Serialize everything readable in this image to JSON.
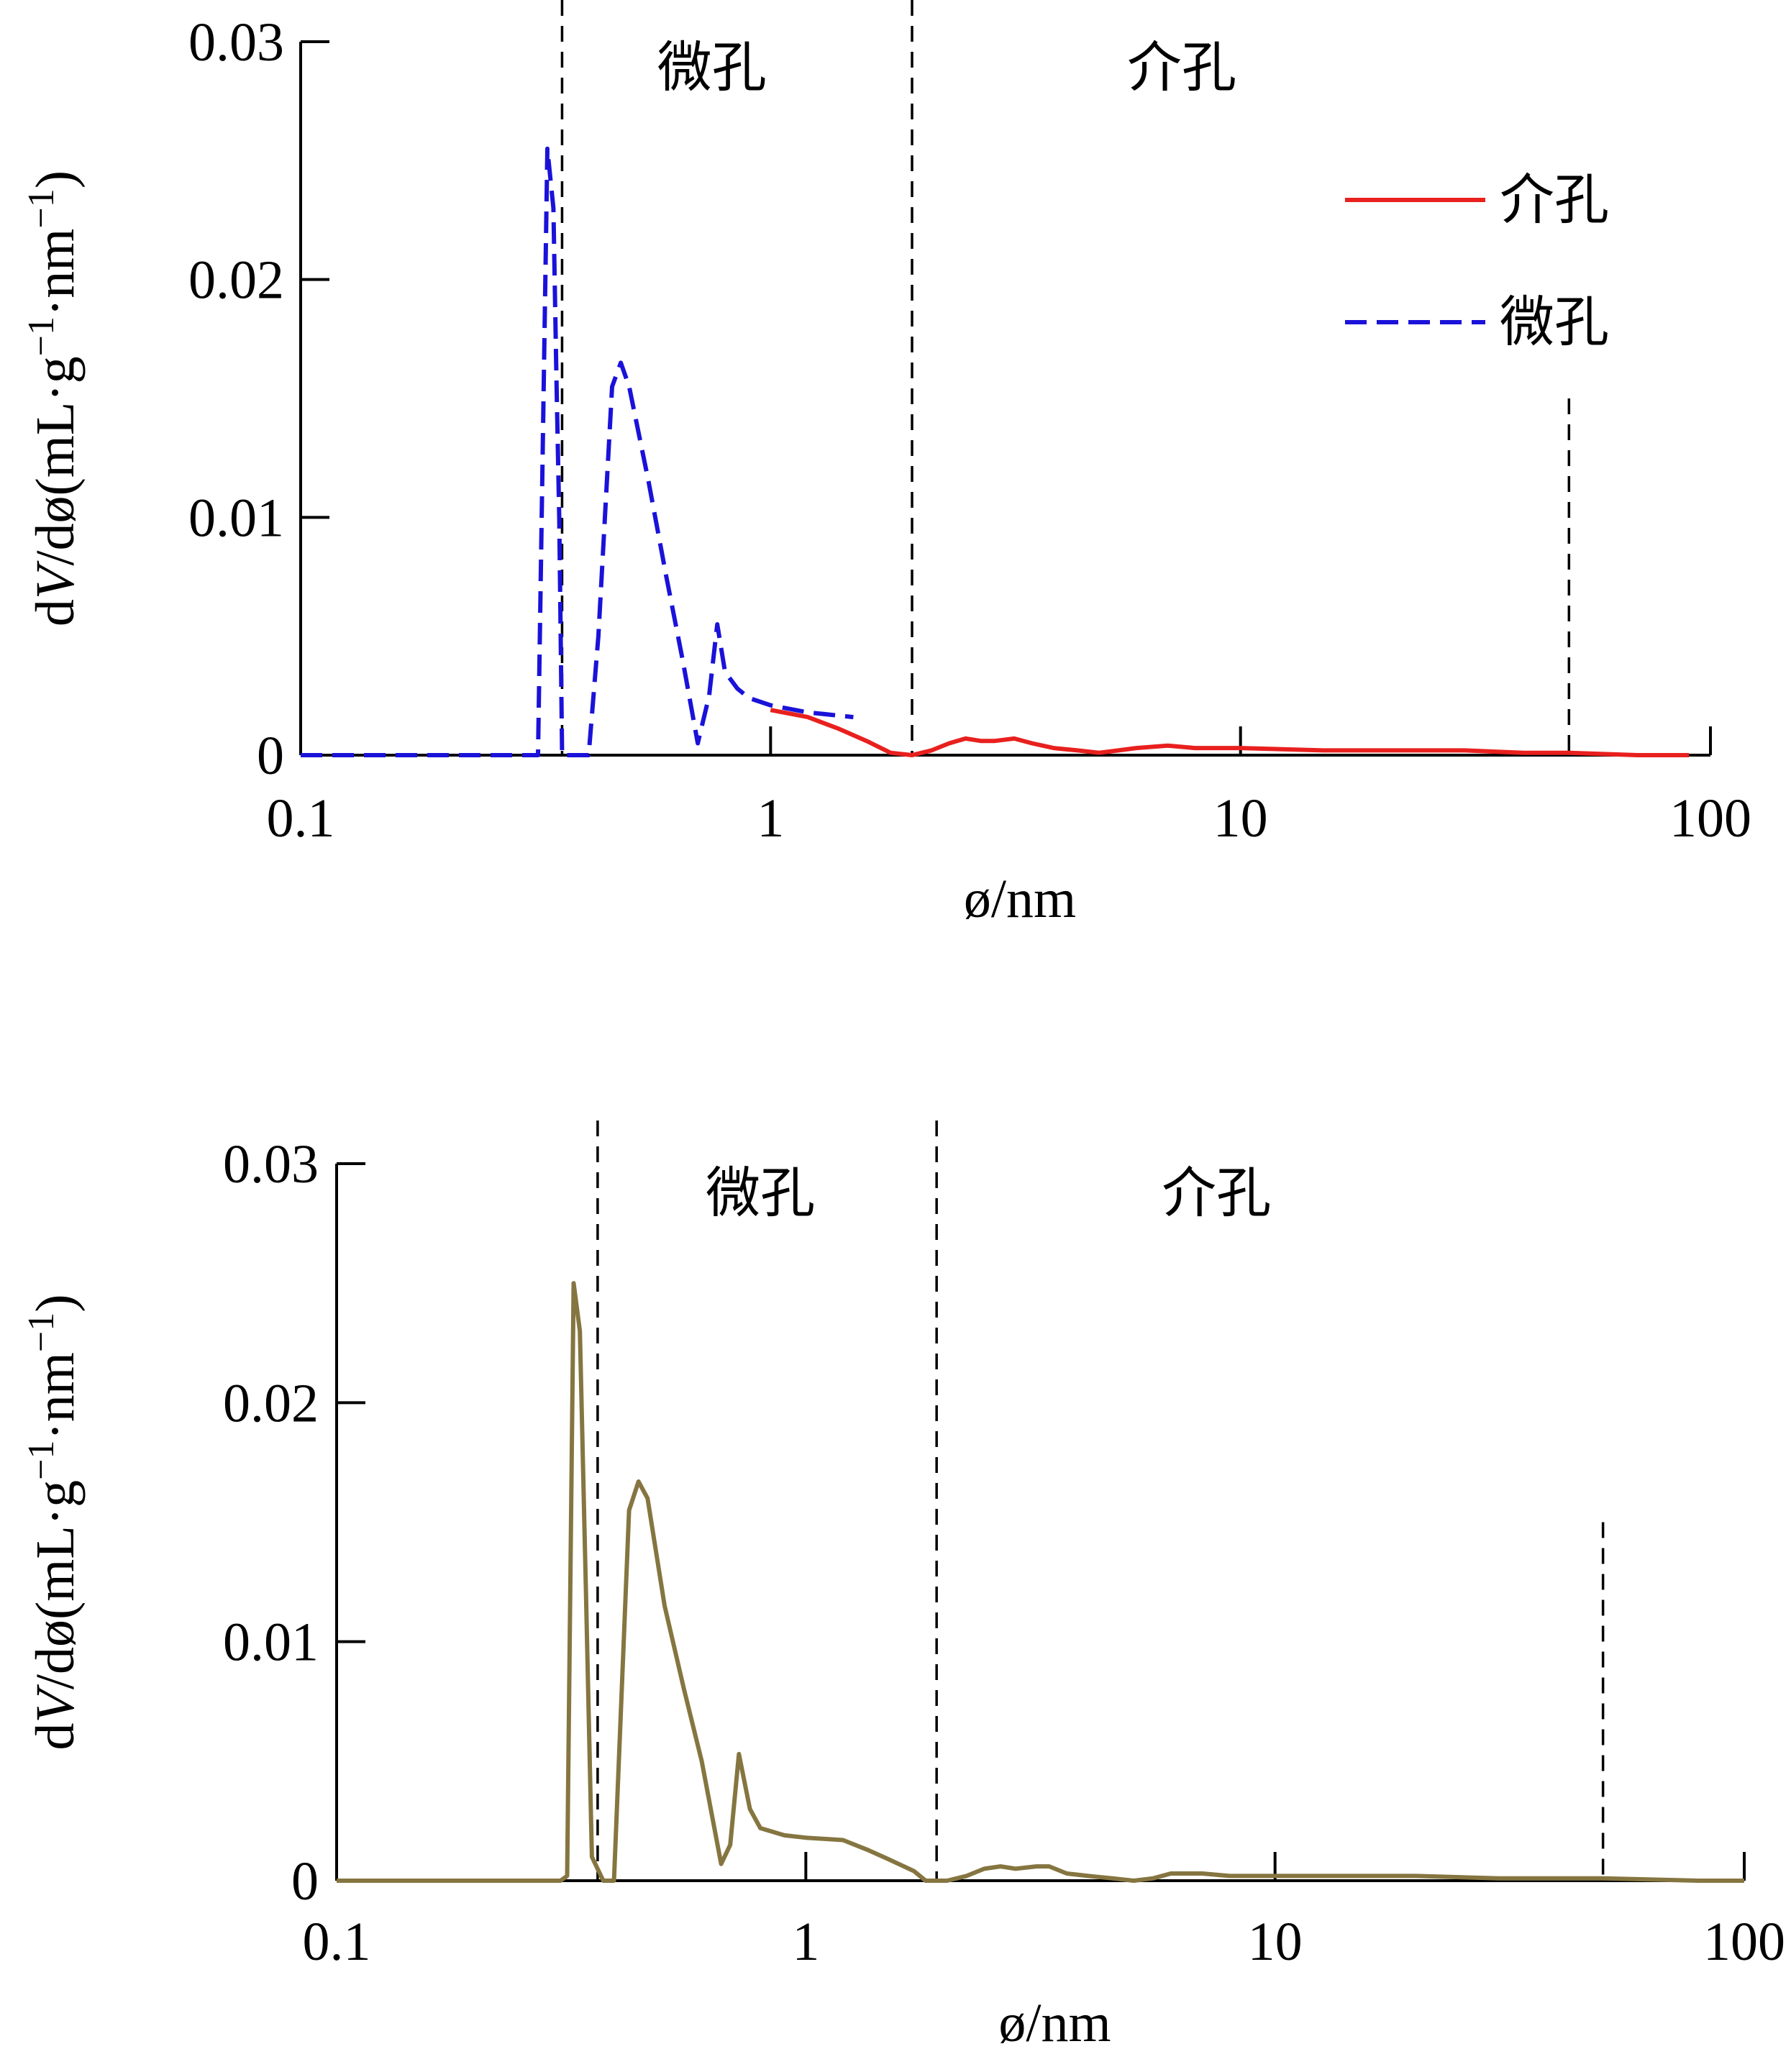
{
  "chart_data": [
    {
      "type": "line",
      "x_scale": "log",
      "xlim": [
        0.1,
        100
      ],
      "ylim": [
        0,
        0.03
      ],
      "x_ticks": [
        0.1,
        1,
        10,
        100
      ],
      "x_tick_labels": [
        "0.1",
        "1",
        "10",
        "100"
      ],
      "y_ticks": [
        0,
        0.01,
        0.02,
        0.03
      ],
      "y_tick_labels": [
        "0",
        "0.01",
        "0.02",
        "0.03"
      ],
      "xlabel": "ø/nm",
      "ylabel": "dV/dø(mL·g⁻¹·nm⁻¹)",
      "ylabel_parts": {
        "d1": "d",
        "V": "V",
        "rest": "/dø(mL·g",
        "sup1": "−1",
        "dot": "·nm",
        "sup2": "−1",
        "close": ")"
      },
      "region_boundaries": [
        0.36,
        2.0,
        50
      ],
      "region_labels": [
        {
          "text": "微孔",
          "x": 0.75
        },
        {
          "text": "介孔",
          "x": 7.5
        }
      ],
      "legend": {
        "position": "top-right"
      },
      "series": [
        {
          "name": "介孔",
          "color": "#e8201e",
          "dash": "solid",
          "points": [
            [
              1.0,
              0.0019
            ],
            [
              1.2,
              0.0016
            ],
            [
              1.4,
              0.0011
            ],
            [
              1.6,
              0.0006
            ],
            [
              1.8,
              0.0001
            ],
            [
              2.0,
              0.0
            ],
            [
              2.2,
              0.0002
            ],
            [
              2.4,
              0.0005
            ],
            [
              2.6,
              0.0007
            ],
            [
              2.8,
              0.0006
            ],
            [
              3.0,
              0.0006
            ],
            [
              3.3,
              0.0007
            ],
            [
              3.6,
              0.0005
            ],
            [
              4.0,
              0.0003
            ],
            [
              4.5,
              0.0002
            ],
            [
              5.0,
              0.0001
            ],
            [
              5.5,
              0.0002
            ],
            [
              6.0,
              0.0003
            ],
            [
              7.0,
              0.0004
            ],
            [
              8.0,
              0.0003
            ],
            [
              10,
              0.0003
            ],
            [
              15,
              0.0002
            ],
            [
              20,
              0.0002
            ],
            [
              30,
              0.0002
            ],
            [
              40,
              0.0001
            ],
            [
              50,
              0.0001
            ],
            [
              70,
              0.0
            ],
            [
              90,
              0.0
            ]
          ]
        },
        {
          "name": "微孔",
          "color": "#1a12d9",
          "dash": "dashed",
          "points": [
            [
              0.1,
              0.0
            ],
            [
              0.2,
              0.0
            ],
            [
              0.3,
              0.0
            ],
            [
              0.32,
              0.0
            ],
            [
              0.335,
              0.0255
            ],
            [
              0.345,
              0.023
            ],
            [
              0.35,
              0.016
            ],
            [
              0.355,
              0.01
            ],
            [
              0.36,
              0.0
            ],
            [
              0.37,
              0.0
            ],
            [
              0.39,
              0.0
            ],
            [
              0.41,
              0.0
            ],
            [
              0.43,
              0.005
            ],
            [
              0.46,
              0.0155
            ],
            [
              0.48,
              0.0165
            ],
            [
              0.5,
              0.0155
            ],
            [
              0.55,
              0.0115
            ],
            [
              0.6,
              0.0075
            ],
            [
              0.65,
              0.004
            ],
            [
              0.7,
              0.0005
            ],
            [
              0.74,
              0.0025
            ],
            [
              0.77,
              0.0055
            ],
            [
              0.8,
              0.0035
            ],
            [
              0.85,
              0.0028
            ],
            [
              0.9,
              0.0024
            ],
            [
              1.0,
              0.0021
            ],
            [
              1.2,
              0.0018
            ],
            [
              1.5,
              0.0016
            ]
          ]
        }
      ]
    },
    {
      "type": "line",
      "x_scale": "log",
      "xlim": [
        0.1,
        100
      ],
      "ylim": [
        0,
        0.03
      ],
      "x_ticks": [
        0.1,
        1,
        10,
        100
      ],
      "x_tick_labels": [
        "0.1",
        "1",
        "10",
        "100"
      ],
      "y_ticks": [
        0,
        0.01,
        0.02,
        0.03
      ],
      "y_tick_labels": [
        "0",
        "0.01",
        "0.02",
        "0.03"
      ],
      "xlabel": "ø/nm",
      "ylabel": "dV/dø(mL·g⁻¹·nm⁻¹)",
      "ylabel_parts": {
        "d1": "d",
        "V": "V",
        "rest": "/dø(mL·g",
        "sup1": "−1",
        "dot": "·nm",
        "sup2": "−1",
        "close": ")"
      },
      "region_boundaries": [
        0.36,
        1.9,
        50
      ],
      "region_labels": [
        {
          "text": "微孔",
          "x": 0.8
        },
        {
          "text": "介孔",
          "x": 7.5
        }
      ],
      "series": [
        {
          "color": "#857540",
          "dash": "solid",
          "points": [
            [
              0.1,
              0.0
            ],
            [
              0.2,
              0.0
            ],
            [
              0.3,
              0.0
            ],
            [
              0.31,
              0.0002
            ],
            [
              0.32,
              0.025
            ],
            [
              0.33,
              0.023
            ],
            [
              0.34,
              0.012
            ],
            [
              0.35,
              0.001
            ],
            [
              0.37,
              0.0
            ],
            [
              0.39,
              0.0
            ],
            [
              0.42,
              0.0155
            ],
            [
              0.44,
              0.0167
            ],
            [
              0.46,
              0.016
            ],
            [
              0.5,
              0.0115
            ],
            [
              0.55,
              0.008
            ],
            [
              0.6,
              0.005
            ],
            [
              0.66,
              0.0007
            ],
            [
              0.69,
              0.0015
            ],
            [
              0.72,
              0.0053
            ],
            [
              0.76,
              0.003
            ],
            [
              0.8,
              0.0022
            ],
            [
              0.9,
              0.0019
            ],
            [
              1.0,
              0.0018
            ],
            [
              1.2,
              0.0017
            ],
            [
              1.35,
              0.0013
            ],
            [
              1.5,
              0.0009
            ],
            [
              1.7,
              0.0004
            ],
            [
              1.8,
              0.0
            ],
            [
              2.0,
              0.0
            ],
            [
              2.2,
              0.0002
            ],
            [
              2.4,
              0.0005
            ],
            [
              2.6,
              0.0006
            ],
            [
              2.8,
              0.0005
            ],
            [
              3.1,
              0.0006
            ],
            [
              3.3,
              0.0006
            ],
            [
              3.6,
              0.0003
            ],
            [
              4.0,
              0.0002
            ],
            [
              4.5,
              0.0001
            ],
            [
              5.0,
              0.0
            ],
            [
              5.5,
              0.0001
            ],
            [
              6.0,
              0.0003
            ],
            [
              7.0,
              0.0003
            ],
            [
              8.0,
              0.0002
            ],
            [
              10,
              0.0002
            ],
            [
              15,
              0.0002
            ],
            [
              20,
              0.0002
            ],
            [
              30,
              0.0001
            ],
            [
              50,
              0.0001
            ],
            [
              80,
              0.0
            ],
            [
              100,
              0.0
            ]
          ]
        }
      ]
    }
  ]
}
